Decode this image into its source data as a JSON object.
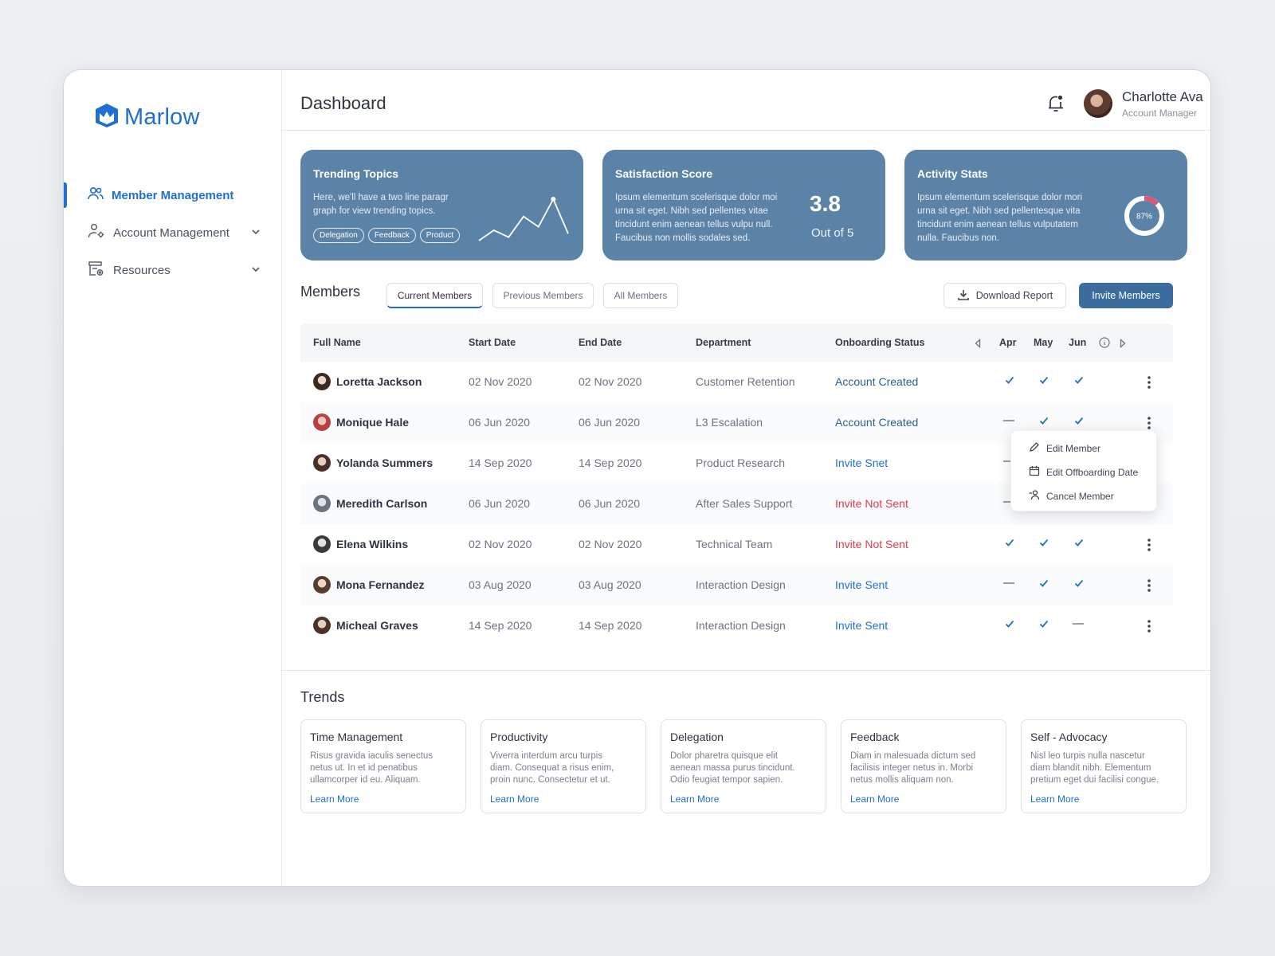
{
  "app": {
    "logo_text": "Marlow",
    "accent_color": "#1f6fd1",
    "card_color": "#5b83a8"
  },
  "sidebar": {
    "items": [
      {
        "label": "Member Management",
        "icon": "users-icon",
        "active": true
      },
      {
        "label": "Account Management",
        "icon": "user-gear-icon",
        "expandable": true
      },
      {
        "label": "Resources",
        "icon": "resources-icon",
        "expandable": true
      }
    ]
  },
  "header": {
    "title": "Dashboard",
    "user_name": "Charlotte Ava",
    "user_role": "Account Manager"
  },
  "cards": {
    "trending": {
      "title": "Trending Topics",
      "text_line1": "Here, we'll have a two line paragr",
      "text_line2": "graph for view trending topics.",
      "chips": [
        "Delegation",
        "Feedback",
        "Product"
      ],
      "sparkline": [
        2,
        5,
        3,
        9,
        6,
        14,
        4
      ]
    },
    "satisfaction": {
      "title": "Satisfaction Score",
      "text_line1": "Ipsum elementum scelerisque dolor moi",
      "text_line2": "urna sit eget. Nibh sed pellentes vitae",
      "text_line3": "tincidunt enim aenean tellus vulpu null.",
      "text_line4": "Faucibus non mollis sodales sed.",
      "score": "3.8",
      "score_sub": "Out of 5"
    },
    "activity": {
      "title": "Activity Stats",
      "text_line1": "Ipsum elementum scelerisque dolor mori",
      "text_line2": "urna sit eget. Nibh sed pellentesque vita",
      "text_line3": "tincidunt enim aenean tellus vulputatem",
      "text_line4": "nulla. Faucibus non.",
      "donut_label": "87%",
      "donut_value": 0.87
    }
  },
  "members": {
    "title": "Members",
    "tabs": [
      "Current Members",
      "Previous Members",
      "All Members"
    ],
    "download_label": "Download Report",
    "invite_label": "Invite Members",
    "columns": {
      "name": "Full Name",
      "start": "Start Date",
      "end": "End Date",
      "department": "Department",
      "status": "Onboarding Status",
      "months": [
        "Apr",
        "May",
        "Jun"
      ]
    },
    "rows": [
      {
        "name": "Loretta Jackson",
        "start": "02 Nov 2020",
        "end": "02 Nov 2020",
        "department": "Customer Retention",
        "status": "Account Created",
        "status_color": "#2b5f98",
        "months": [
          "check",
          "check",
          "check"
        ]
      },
      {
        "name": "Monique Hale",
        "start": "06 Jun 2020",
        "end": "06 Jun 2020",
        "department": "L3 Escalation",
        "status": "Account Created",
        "status_color": "#2b5f98",
        "months": [
          "dash",
          "check",
          "check"
        ]
      },
      {
        "name": "Yolanda Summers",
        "start": "14 Sep 2020",
        "end": "14 Sep 2020",
        "department": "Product Research",
        "status": "Invite Snet",
        "status_color": "#1f6fd1",
        "months": [
          "dash",
          "",
          ""
        ]
      },
      {
        "name": "Meredith Carlson",
        "start": "06 Jun 2020",
        "end": "06 Jun 2020",
        "department": "After Sales Support",
        "status": "Invite Not Sent",
        "status_color": "#e03a4b",
        "months": [
          "dash",
          "",
          ""
        ]
      },
      {
        "name": "Elena Wilkins",
        "start": "02 Nov 2020",
        "end": "02 Nov 2020",
        "department": "Technical Team",
        "status": "Invite Not Sent",
        "status_color": "#e03a4b",
        "months": [
          "check",
          "check",
          "check"
        ]
      },
      {
        "name": "Mona Fernandez",
        "start": "03 Aug 2020",
        "end": "03 Aug 2020",
        "department": "Interaction Design",
        "status": "Invite Sent",
        "status_color": "#1f6fd1",
        "months": [
          "dash",
          "check",
          "check"
        ]
      },
      {
        "name": "Micheal Graves",
        "start": "14 Sep 2020",
        "end": "14 Sep 2020",
        "department": "Interaction Design",
        "status": "Invite Sent",
        "status_color": "#1f6fd1",
        "months": [
          "check",
          "check",
          "dash"
        ]
      }
    ],
    "context_menu": [
      "Edit Member",
      "Edit Offboarding Date",
      "Cancel Member"
    ]
  },
  "trends": {
    "title": "Trends",
    "link_label": "Learn More",
    "cards": [
      {
        "title": "Time Management",
        "line1": "Risus gravida iaculis senectus",
        "line2": "netus ut. In et id penatibus",
        "line3": "ullamcorper id eu. Aliquam."
      },
      {
        "title": "Productivity",
        "line1": "Viverra interdum arcu turpis",
        "line2": "diam. Consequat a risus enim,",
        "line3": "proin nunc. Consectetur et ut."
      },
      {
        "title": "Delegation",
        "line1": "Dolor pharetra quisque elit",
        "line2": "aenean massa purus tincidunt.",
        "line3": "Odio feugiat tempor sapien."
      },
      {
        "title": "Feedback",
        "line1": "Diam in malesuada dictum sed",
        "line2": "facilisis integer netus in. Morbi",
        "line3": "netus mollis aliquam non."
      },
      {
        "title": "Self - Advocacy",
        "line1": "Nisl leo turpis nulla nascetur",
        "line2": "diam blandit nibh. Elementum",
        "line3": "pretium eget dui facilisi congue."
      }
    ]
  }
}
